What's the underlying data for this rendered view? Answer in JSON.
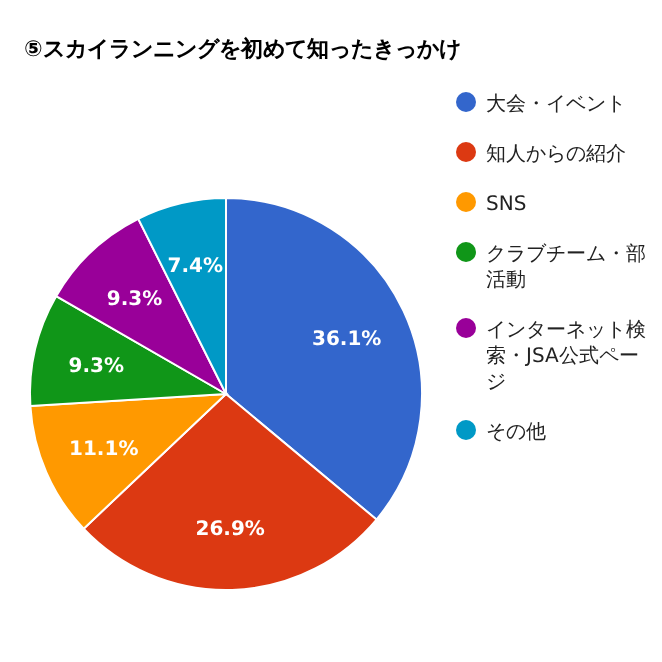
{
  "chart_data": {
    "type": "pie",
    "title": "⑤スカイランニングを初めて知ったきっかけ",
    "categories": [
      "大会・イベント",
      "知人からの紹介",
      "SNS",
      "クラブチーム・部活動",
      "インターネット検索・JSA公式ページ",
      "その他"
    ],
    "values": [
      36.1,
      26.9,
      11.1,
      9.3,
      9.3,
      7.4
    ],
    "colors": [
      "#3366cc",
      "#dc3912",
      "#ff9900",
      "#109618",
      "#990099",
      "#0099c6"
    ],
    "value_labels": [
      "36.1%",
      "26.9%",
      "11.1%",
      "9.3%",
      "9.3%",
      "7.4%"
    ],
    "legend": "right"
  }
}
